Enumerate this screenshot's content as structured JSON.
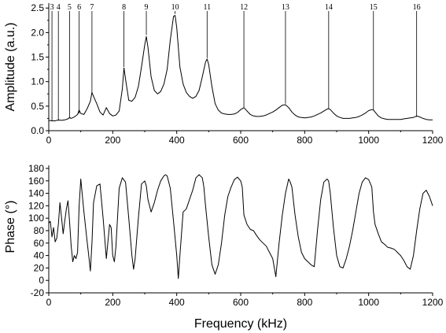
{
  "chart_data": [
    {
      "type": "line",
      "ylabel": "Amplitude (a.u.)",
      "xlim": [
        0,
        1200
      ],
      "ylim": [
        0,
        2.6
      ],
      "xticks": [
        0,
        200,
        400,
        600,
        800,
        1000,
        1200
      ],
      "yticks": [
        0.0,
        0.5,
        1.0,
        1.5,
        2.0,
        2.5
      ],
      "ytick_labels": [
        "0.0",
        "0.5",
        "1.0",
        "1.5",
        "2.0",
        "2.5"
      ],
      "annotations": [
        {
          "label": "3",
          "x": 10,
          "y_end": 0.2
        },
        {
          "label": "4",
          "x": 30,
          "y_end": 0.2
        },
        {
          "label": "5",
          "x": 65,
          "y_end": 0.25
        },
        {
          "label": "6",
          "x": 95,
          "y_end": 0.35
        },
        {
          "label": "7",
          "x": 135,
          "y_end": 0.75
        },
        {
          "label": "8",
          "x": 235,
          "y_end": 1.3
        },
        {
          "label": "9",
          "x": 305,
          "y_end": 1.95
        },
        {
          "label": "10",
          "x": 395,
          "y_end": 2.38
        },
        {
          "label": "11",
          "x": 495,
          "y_end": 1.48
        },
        {
          "label": "12",
          "x": 610,
          "y_end": 0.48
        },
        {
          "label": "13",
          "x": 740,
          "y_end": 0.55
        },
        {
          "label": "14",
          "x": 875,
          "y_end": 0.44
        },
        {
          "label": "15",
          "x": 1015,
          "y_end": 0.42
        },
        {
          "label": "16",
          "x": 1150,
          "y_end": 0.28
        }
      ],
      "series": [
        {
          "x": [
            0,
            10,
            20,
            30,
            40,
            50,
            60,
            65,
            70,
            80,
            90,
            95,
            100,
            110,
            120,
            130,
            135,
            140,
            150,
            160,
            170,
            180,
            190,
            200,
            210,
            220,
            230,
            235,
            240,
            250,
            260,
            270,
            280,
            290,
            300,
            305,
            310,
            320,
            330,
            340,
            350,
            360,
            370,
            380,
            390,
            395,
            400,
            410,
            420,
            430,
            440,
            450,
            460,
            470,
            480,
            490,
            495,
            500,
            510,
            520,
            530,
            540,
            550,
            560,
            570,
            580,
            590,
            600,
            610,
            620,
            630,
            640,
            650,
            660,
            670,
            680,
            690,
            700,
            710,
            720,
            730,
            740,
            750,
            760,
            770,
            780,
            790,
            800,
            810,
            820,
            830,
            840,
            850,
            860,
            870,
            875,
            880,
            890,
            900,
            910,
            920,
            930,
            940,
            950,
            960,
            970,
            980,
            990,
            1000,
            1010,
            1015,
            1020,
            1030,
            1040,
            1050,
            1060,
            1070,
            1080,
            1090,
            1100,
            1110,
            1120,
            1130,
            1140,
            1150,
            1160,
            1170,
            1180,
            1190,
            1200
          ],
          "y": [
            0.21,
            0.2,
            0.2,
            0.22,
            0.21,
            0.22,
            0.24,
            0.27,
            0.25,
            0.28,
            0.33,
            0.42,
            0.35,
            0.33,
            0.45,
            0.6,
            0.78,
            0.7,
            0.55,
            0.38,
            0.32,
            0.47,
            0.35,
            0.3,
            0.32,
            0.4,
            0.85,
            1.28,
            1.05,
            0.62,
            0.6,
            0.68,
            0.9,
            1.3,
            1.75,
            1.92,
            1.7,
            1.1,
            0.82,
            0.75,
            0.8,
            0.95,
            1.25,
            1.85,
            2.33,
            2.35,
            2.1,
            1.3,
            0.95,
            0.78,
            0.7,
            0.66,
            0.7,
            0.82,
            1.1,
            1.4,
            1.46,
            1.35,
            0.9,
            0.55,
            0.42,
            0.36,
            0.34,
            0.33,
            0.33,
            0.34,
            0.37,
            0.43,
            0.47,
            0.4,
            0.33,
            0.3,
            0.29,
            0.29,
            0.3,
            0.32,
            0.35,
            0.38,
            0.42,
            0.47,
            0.52,
            0.53,
            0.47,
            0.38,
            0.32,
            0.28,
            0.27,
            0.26,
            0.27,
            0.28,
            0.3,
            0.33,
            0.36,
            0.4,
            0.44,
            0.45,
            0.43,
            0.36,
            0.3,
            0.27,
            0.25,
            0.25,
            0.25,
            0.26,
            0.27,
            0.29,
            0.32,
            0.36,
            0.41,
            0.43,
            0.42,
            0.38,
            0.3,
            0.26,
            0.24,
            0.23,
            0.23,
            0.23,
            0.23,
            0.23,
            0.24,
            0.25,
            0.26,
            0.27,
            0.3,
            0.28,
            0.25,
            0.23,
            0.22,
            0.22
          ]
        }
      ]
    },
    {
      "type": "line",
      "xlabel": "Frequency (kHz)",
      "ylabel": "Phase (°)",
      "xlim": [
        0,
        1200
      ],
      "ylim": [
        -20,
        185
      ],
      "xticks": [
        0,
        200,
        400,
        600,
        800,
        1000,
        1200
      ],
      "yticks": [
        -20,
        0,
        20,
        40,
        60,
        80,
        100,
        120,
        140,
        160,
        180
      ],
      "series": [
        {
          "x": [
            0,
            5,
            10,
            15,
            20,
            25,
            30,
            35,
            40,
            45,
            50,
            55,
            60,
            65,
            70,
            75,
            80,
            85,
            90,
            95,
            100,
            110,
            120,
            125,
            130,
            135,
            140,
            150,
            160,
            170,
            180,
            190,
            195,
            200,
            205,
            210,
            220,
            230,
            240,
            250,
            260,
            265,
            270,
            280,
            290,
            300,
            305,
            310,
            320,
            330,
            340,
            350,
            360,
            365,
            370,
            380,
            390,
            400,
            405,
            410,
            420,
            430,
            440,
            450,
            460,
            470,
            480,
            485,
            490,
            500,
            510,
            520,
            530,
            540,
            550,
            560,
            570,
            580,
            590,
            600,
            605,
            610,
            620,
            630,
            640,
            650,
            660,
            670,
            680,
            690,
            700,
            710,
            720,
            730,
            740,
            750,
            755,
            760,
            770,
            780,
            790,
            800,
            810,
            820,
            830,
            840,
            850,
            860,
            870,
            875,
            880,
            890,
            900,
            910,
            920,
            930,
            940,
            950,
            960,
            970,
            980,
            990,
            1000,
            1010,
            1015,
            1020,
            1030,
            1040,
            1050,
            1060,
            1070,
            1080,
            1090,
            1100,
            1110,
            1120,
            1130,
            1140,
            1150,
            1160,
            1170,
            1180,
            1190,
            1200
          ],
          "y": [
            92,
            95,
            70,
            85,
            62,
            68,
            90,
            125,
            100,
            75,
            95,
            115,
            128,
            95,
            55,
            30,
            40,
            35,
            45,
            120,
            163,
            110,
            62,
            40,
            15,
            60,
            125,
            152,
            155,
            100,
            35,
            90,
            85,
            40,
            30,
            55,
            148,
            165,
            158,
            100,
            40,
            18,
            35,
            100,
            155,
            160,
            152,
            130,
            110,
            125,
            145,
            160,
            168,
            170,
            168,
            148,
            95,
            40,
            3,
            40,
            110,
            115,
            130,
            145,
            165,
            170,
            165,
            150,
            120,
            70,
            25,
            10,
            25,
            60,
            105,
            135,
            150,
            162,
            166,
            160,
            150,
            105,
            90,
            82,
            80,
            72,
            65,
            60,
            55,
            45,
            35,
            6,
            60,
            105,
            140,
            163,
            158,
            150,
            105,
            70,
            45,
            35,
            30,
            25,
            22,
            80,
            130,
            158,
            163,
            160,
            140,
            85,
            40,
            22,
            20,
            35,
            55,
            80,
            110,
            140,
            158,
            165,
            162,
            150,
            110,
            90,
            75,
            62,
            58,
            53,
            52,
            50,
            45,
            40,
            32,
            22,
            18,
            40,
            80,
            115,
            140,
            145,
            135,
            120
          ]
        }
      ]
    }
  ]
}
